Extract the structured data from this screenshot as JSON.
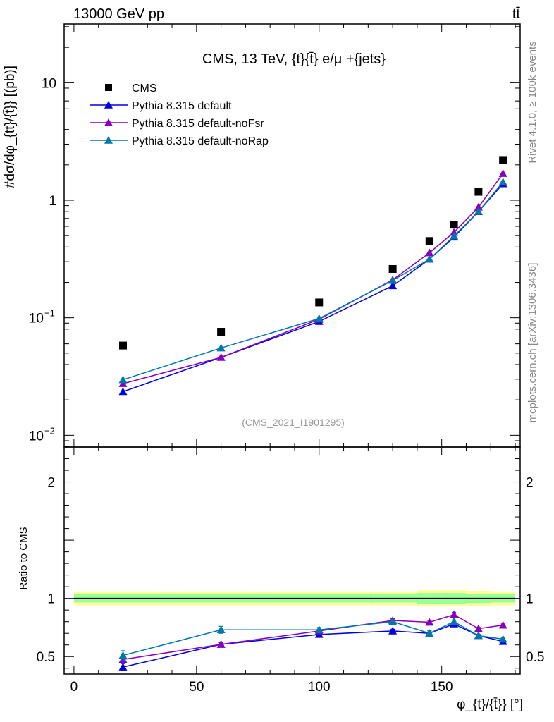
{
  "header": {
    "energy_label": "13000 GeV pp",
    "process_label": "tt̄"
  },
  "side_labels": {
    "rivet": "Rivet 4.1.0, ≥ 100k events",
    "mcplots": "mcplots.cern.ch [arXiv:1306.3436]"
  },
  "chart_data": {
    "type": "line",
    "title": "CMS, 13 TeV, {t}{t̄} e/μ +{jets}",
    "analysis_id": "(CMS_2021_I1901295)",
    "ylabel_main": "#dσ/dφ_{tt}/{t̄}} [(pb)]",
    "ylabel_ratio": "Ratio to CMS",
    "xlabel": "φ_{t}/{t̄}} [°]",
    "xlim": [
      -4,
      182
    ],
    "ylim_main_log10": [
      -2.1,
      1.5
    ],
    "ylim_ratio": [
      0.35,
      2.3
    ],
    "x_ticks": [
      {
        "v": 0,
        "label": "0"
      },
      {
        "v": 50,
        "label": "50"
      },
      {
        "v": 100,
        "label": "100"
      },
      {
        "v": 150,
        "label": "150"
      }
    ],
    "y_ticks_main": [
      {
        "v": 0.01,
        "base": "10",
        "exp": "−2"
      },
      {
        "v": 0.1,
        "base": "10",
        "exp": "−1"
      },
      {
        "v": 1,
        "base": "1",
        "exp": ""
      },
      {
        "v": 10,
        "base": "10",
        "exp": ""
      }
    ],
    "y_ticks_ratio": [
      {
        "v": 0.5,
        "label": "0.5"
      },
      {
        "v": 1,
        "label": "1"
      },
      {
        "v": 2,
        "label": "2"
      }
    ],
    "x": [
      20,
      60,
      100,
      130,
      145,
      155,
      165,
      175
    ],
    "data": {
      "name": "CMS",
      "color": "#000000",
      "values": [
        0.058,
        0.076,
        0.135,
        0.26,
        0.45,
        0.62,
        1.18,
        2.2
      ]
    },
    "band_edges": [
      0,
      40,
      80,
      120,
      140,
      150,
      160,
      170,
      180
    ],
    "band_outer": [
      0.06,
      0.06,
      0.06,
      0.06,
      0.07,
      0.07,
      0.065,
      0.06
    ],
    "band_inner": [
      0.035,
      0.035,
      0.035,
      0.035,
      0.045,
      0.045,
      0.04,
      0.035
    ],
    "band_outer_color": "#ffff99",
    "band_inner_color": "#99ff99",
    "series": [
      {
        "name": "Pythia 8.315 default",
        "color": "#0000dd",
        "values": [
          0.0235,
          0.046,
          0.093,
          0.187,
          0.315,
          0.485,
          0.8,
          1.38
        ],
        "ratio": [
          0.41,
          0.605,
          0.69,
          0.72,
          0.7,
          0.78,
          0.68,
          0.63
        ],
        "ratio_err": [
          0.03,
          0.02,
          0.015,
          0.015,
          0.02,
          0.015,
          0.01,
          0.01
        ]
      },
      {
        "name": "Pythia 8.315 default-noFsr",
        "color": "#8800bb",
        "values": [
          0.0275,
          0.046,
          0.097,
          0.21,
          0.357,
          0.533,
          0.873,
          1.69
        ],
        "ratio": [
          0.475,
          0.605,
          0.72,
          0.81,
          0.795,
          0.86,
          0.74,
          0.77
        ],
        "ratio_err": [
          0.02,
          0.015,
          0.015,
          0.015,
          0.015,
          0.02,
          0.01,
          0.01
        ]
      },
      {
        "name": "Pythia 8.315 default-noRap",
        "color": "#0077aa",
        "values": [
          0.0297,
          0.0553,
          0.0985,
          0.208,
          0.315,
          0.496,
          0.802,
          1.43
        ],
        "ratio": [
          0.51,
          0.73,
          0.73,
          0.8,
          0.7,
          0.8,
          0.68,
          0.65
        ],
        "ratio_err": [
          0.04,
          0.03,
          0.02,
          0.015,
          0.02,
          0.015,
          0.01,
          0.01
        ]
      }
    ]
  }
}
